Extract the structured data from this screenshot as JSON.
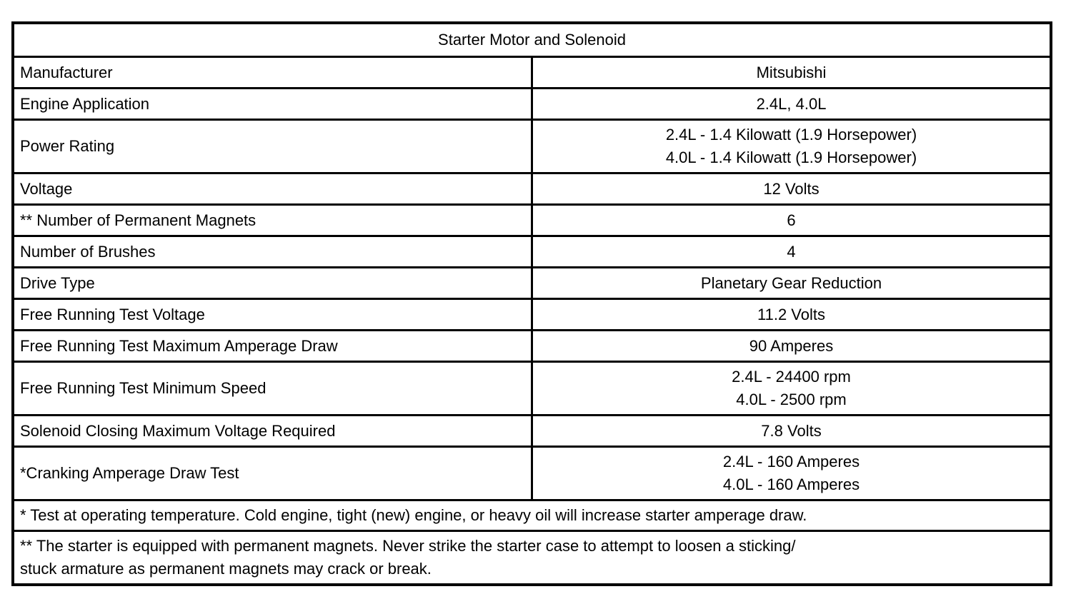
{
  "table": {
    "title": "Starter Motor and Solenoid",
    "rows": [
      {
        "label": "Manufacturer",
        "values": [
          "Mitsubishi"
        ]
      },
      {
        "label": "Engine Application",
        "values": [
          "2.4L, 4.0L"
        ]
      },
      {
        "label": "Power Rating",
        "values": [
          "2.4L - 1.4 Kilowatt (1.9 Horsepower)",
          "4.0L - 1.4 Kilowatt (1.9 Horsepower)"
        ]
      },
      {
        "label": "Voltage",
        "values": [
          "12 Volts"
        ]
      },
      {
        "label": "** Number of Permanent Magnets",
        "values": [
          "6"
        ]
      },
      {
        "label": "Number of Brushes",
        "values": [
          "4"
        ]
      },
      {
        "label": "Drive Type",
        "values": [
          "Planetary Gear Reduction"
        ]
      },
      {
        "label": "Free Running Test Voltage",
        "values": [
          "11.2 Volts"
        ]
      },
      {
        "label": "Free Running Test Maximum Amperage Draw",
        "values": [
          "90 Amperes"
        ]
      },
      {
        "label": "Free Running Test Minimum Speed",
        "values": [
          "2.4L - 24400 rpm",
          "4.0L - 2500 rpm"
        ]
      },
      {
        "label": "Solenoid Closing Maximum Voltage Required",
        "values": [
          "7.8 Volts"
        ]
      },
      {
        "label": "*Cranking Amperage Draw Test",
        "values": [
          "2.4L - 160 Amperes",
          "4.0L - 160 Amperes"
        ]
      }
    ],
    "footnotes": [
      {
        "lines": [
          "* Test at operating temperature. Cold engine, tight (new) engine, or heavy oil will increase starter amperage draw."
        ]
      },
      {
        "lines": [
          "** The starter is equipped with permanent magnets. Never strike the starter case to attempt to loosen a sticking/",
          "stuck armature as permanent magnets may crack or break."
        ]
      }
    ]
  }
}
